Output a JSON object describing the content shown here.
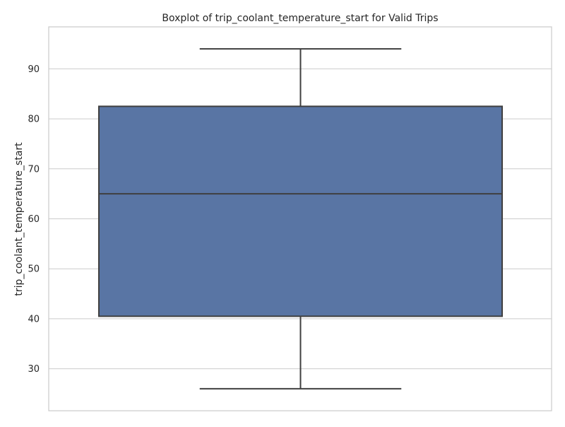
{
  "chart_data": {
    "type": "box",
    "title": "Boxplot of trip_coolant_temperature_start for Valid Trips",
    "xlabel": "",
    "ylabel": "trip_coolant_temperature_start",
    "ylim": [
      21.6,
      98.4
    ],
    "yticks": [
      30,
      40,
      50,
      60,
      70,
      80,
      90
    ],
    "grid": "horizontal",
    "colors": {
      "box": "#5975a4",
      "line": "#3f3f3f",
      "grid": "#cccccc",
      "spine": "#cccccc"
    },
    "box": {
      "whisker_low": 26,
      "q1": 40.5,
      "median": 65,
      "q3": 82.5,
      "whisker_high": 94
    }
  }
}
